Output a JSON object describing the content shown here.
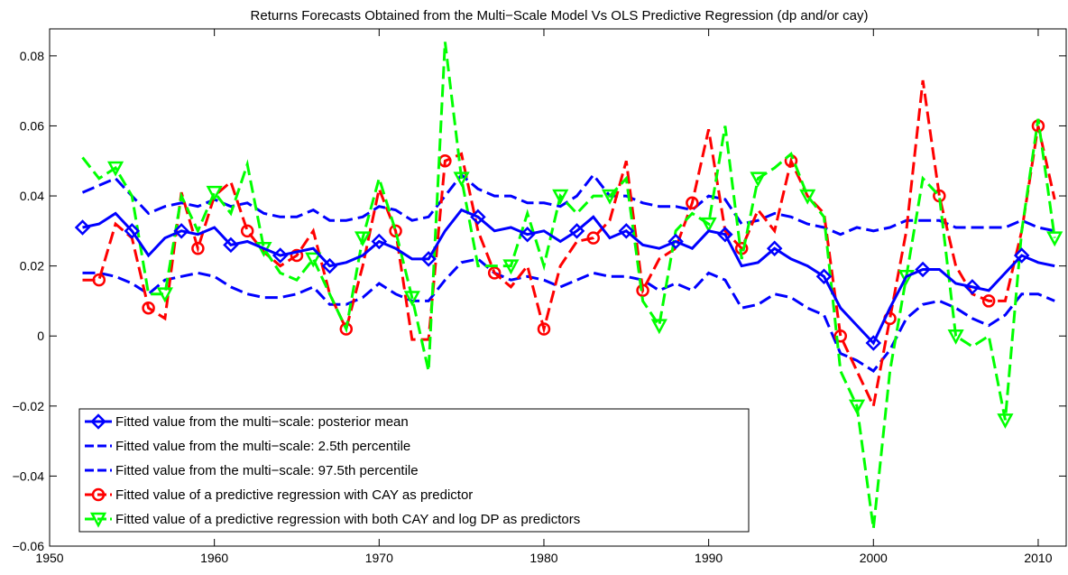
{
  "chart_data": {
    "type": "line",
    "title": "Returns Forecasts Obtained from the Multi−Scale Model Vs OLS Predictive Regression (dp and/or cay)",
    "x": [
      1952,
      1953,
      1954,
      1955,
      1956,
      1957,
      1958,
      1959,
      1960,
      1961,
      1962,
      1963,
      1964,
      1965,
      1966,
      1967,
      1968,
      1969,
      1970,
      1971,
      1972,
      1973,
      1974,
      1975,
      1976,
      1977,
      1978,
      1979,
      1980,
      1981,
      1982,
      1983,
      1984,
      1985,
      1986,
      1987,
      1988,
      1989,
      1990,
      1991,
      1992,
      1993,
      1994,
      1995,
      1996,
      1997,
      1998,
      1999,
      2000,
      2001,
      2002,
      2003,
      2004,
      2005,
      2006,
      2007,
      2008,
      2009,
      2010,
      2011
    ],
    "xlim": [
      1950,
      2011.7
    ],
    "xticks": [
      1950,
      1960,
      1970,
      1980,
      1990,
      2000,
      2010
    ],
    "ylim": [
      -0.06,
      0.0877
    ],
    "yticks": [
      {
        "value": -0.06,
        "label": "−0.06"
      },
      {
        "value": -0.04,
        "label": "−0.04"
      },
      {
        "value": -0.02,
        "label": "−0.02"
      },
      0,
      0.02,
      0.04,
      0.06,
      0.08
    ],
    "legend": "lower left",
    "series": [
      {
        "name": "Fitted value from the multi−scale: posterior mean",
        "color": "#0000ff",
        "line_style": "solid",
        "marker": "diamond",
        "values": [
          0.031,
          0.032,
          0.035,
          0.03,
          0.023,
          0.028,
          0.03,
          0.029,
          0.031,
          0.026,
          0.027,
          0.025,
          0.023,
          0.024,
          0.025,
          0.02,
          0.021,
          0.023,
          0.027,
          0.025,
          0.022,
          0.022,
          0.03,
          0.036,
          0.034,
          0.03,
          0.031,
          0.029,
          0.03,
          0.027,
          0.03,
          0.034,
          0.028,
          0.03,
          0.026,
          0.025,
          0.027,
          0.025,
          0.03,
          0.029,
          0.02,
          0.021,
          0.025,
          0.022,
          0.02,
          0.017,
          0.008,
          0.003,
          -0.002,
          0.008,
          0.017,
          0.019,
          0.019,
          0.015,
          0.014,
          0.013,
          0.018,
          0.023,
          0.021,
          0.02
        ]
      },
      {
        "name": "Fitted value from the multi−scale: 2.5th percentile",
        "color": "#0000ff",
        "line_style": "dashed",
        "marker": "none",
        "values": [
          0.018,
          0.018,
          0.017,
          0.015,
          0.012,
          0.016,
          0.017,
          0.018,
          0.017,
          0.014,
          0.012,
          0.011,
          0.011,
          0.012,
          0.014,
          0.009,
          0.009,
          0.011,
          0.015,
          0.012,
          0.01,
          0.01,
          0.016,
          0.021,
          0.022,
          0.018,
          0.016,
          0.017,
          0.016,
          0.014,
          0.016,
          0.018,
          0.017,
          0.017,
          0.016,
          0.013,
          0.015,
          0.013,
          0.018,
          0.016,
          0.008,
          0.009,
          0.012,
          0.011,
          0.008,
          0.006,
          -0.005,
          -0.007,
          -0.01,
          -0.004,
          0.005,
          0.009,
          0.01,
          0.008,
          0.005,
          0.003,
          0.006,
          0.012,
          0.012,
          0.01
        ]
      },
      {
        "name": "Fitted value from the multi−scale: 97.5th percentile",
        "color": "#0000ff",
        "line_style": "dashed",
        "marker": "none",
        "values": [
          0.041,
          0.043,
          0.045,
          0.04,
          0.035,
          0.037,
          0.038,
          0.037,
          0.039,
          0.037,
          0.038,
          0.035,
          0.034,
          0.034,
          0.036,
          0.033,
          0.033,
          0.034,
          0.037,
          0.036,
          0.033,
          0.034,
          0.04,
          0.046,
          0.042,
          0.04,
          0.04,
          0.038,
          0.038,
          0.037,
          0.04,
          0.046,
          0.04,
          0.04,
          0.038,
          0.037,
          0.037,
          0.036,
          0.04,
          0.039,
          0.032,
          0.033,
          0.035,
          0.034,
          0.032,
          0.031,
          0.029,
          0.031,
          0.03,
          0.031,
          0.033,
          0.033,
          0.033,
          0.031,
          0.031,
          0.031,
          0.031,
          0.033,
          0.031,
          0.03
        ]
      },
      {
        "name": "Fitted value of a predictive regression with CAY as predictor",
        "color": "#ff0000",
        "line_style": "dashed",
        "marker": "circle",
        "values": [
          0.016,
          0.016,
          0.032,
          0.028,
          0.008,
          0.005,
          0.041,
          0.025,
          0.04,
          0.044,
          0.03,
          0.024,
          0.02,
          0.023,
          0.03,
          0.012,
          0.002,
          0.02,
          0.042,
          0.03,
          -0.001,
          -0.001,
          0.05,
          0.052,
          0.03,
          0.018,
          0.014,
          0.02,
          0.002,
          0.02,
          0.027,
          0.028,
          0.033,
          0.05,
          0.013,
          0.022,
          0.025,
          0.038,
          0.059,
          0.03,
          0.025,
          0.036,
          0.03,
          0.05,
          0.04,
          0.035,
          0.0,
          -0.01,
          -0.02,
          0.005,
          0.03,
          0.073,
          0.04,
          0.02,
          0.012,
          0.01,
          0.01,
          0.03,
          0.06,
          0.039
        ]
      },
      {
        "name": "Fitted value of a predictive regression with both CAY and log DP as predictors",
        "color": "#00ff00",
        "line_style": "dashed",
        "marker": "triangle-down",
        "values": [
          0.051,
          0.045,
          0.048,
          0.04,
          0.012,
          0.012,
          0.04,
          0.03,
          0.041,
          0.035,
          0.049,
          0.025,
          0.018,
          0.016,
          0.022,
          0.012,
          0.002,
          0.028,
          0.045,
          0.03,
          0.011,
          -0.01,
          0.084,
          0.045,
          0.02,
          0.02,
          0.02,
          0.035,
          0.02,
          0.04,
          0.035,
          0.04,
          0.04,
          0.045,
          0.01,
          0.003,
          0.03,
          0.035,
          0.032,
          0.06,
          0.022,
          0.045,
          0.048,
          0.052,
          0.04,
          0.034,
          -0.01,
          -0.02,
          -0.055,
          -0.01,
          0.017,
          0.045,
          0.04,
          0.0,
          -0.003,
          0.0,
          -0.024,
          0.03,
          0.062,
          0.028
        ]
      }
    ]
  }
}
